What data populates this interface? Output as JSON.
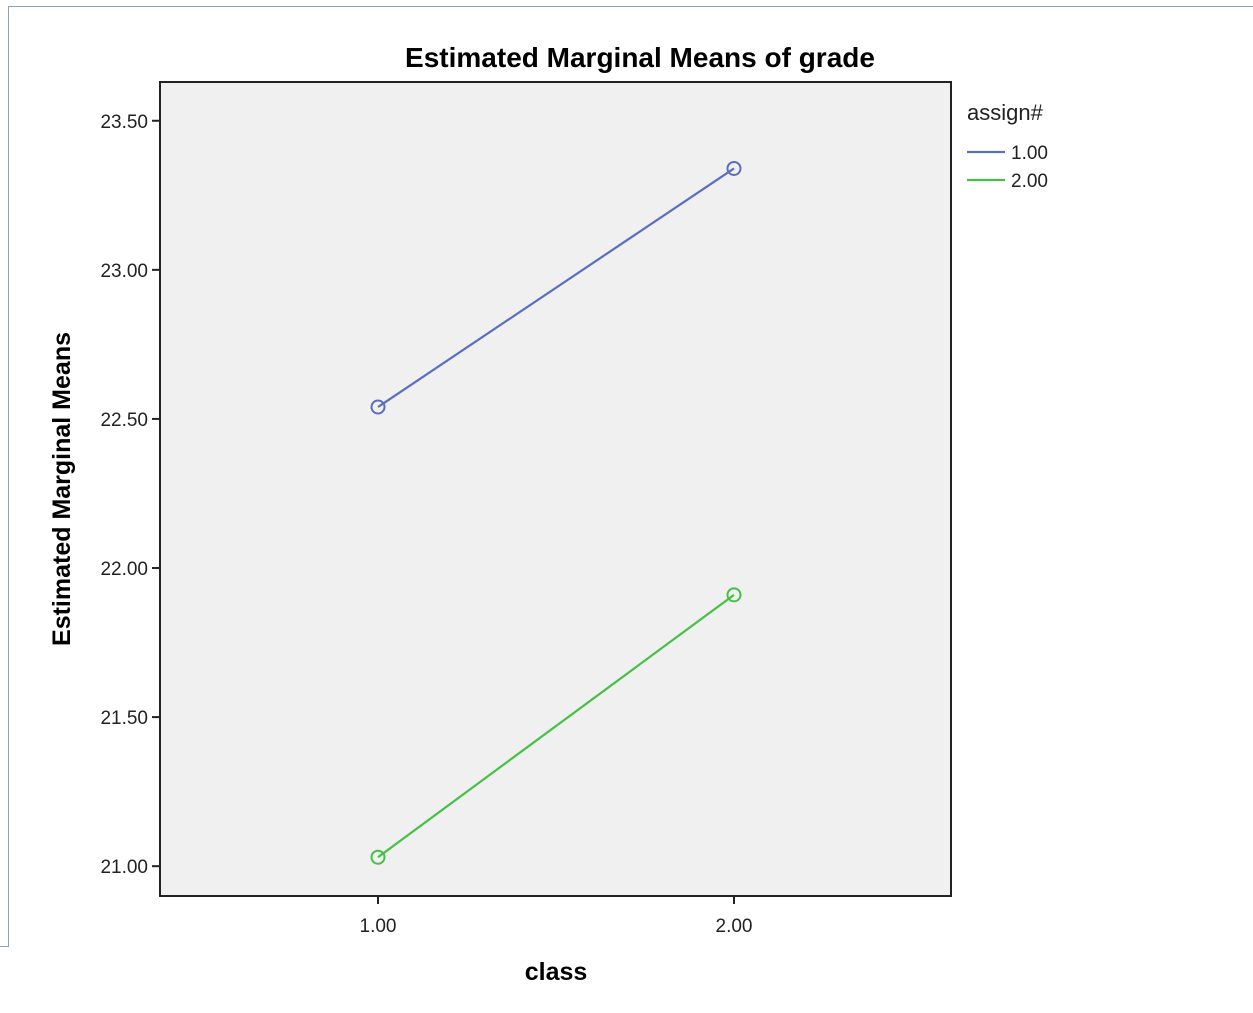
{
  "chart_data": {
    "type": "line",
    "title": "Estimated Marginal Means of grade",
    "xlabel": "class",
    "ylabel": "Estimated Marginal Means",
    "categories": [
      "1.00",
      "2.00"
    ],
    "ylim": [
      20.9,
      23.63
    ],
    "yticks": [
      "21.00",
      "21.50",
      "22.00",
      "22.50",
      "23.00",
      "23.50"
    ],
    "grid": false,
    "legend": {
      "title": "assign#",
      "position": "top-right, outside plot"
    },
    "series": [
      {
        "name": "1.00",
        "color": "#5a6ebf",
        "values": [
          22.54,
          23.34
        ]
      },
      {
        "name": "2.00",
        "color": "#45c045",
        "values": [
          21.03,
          21.91
        ]
      }
    ],
    "plot_background": "#f0f0f0",
    "marker": "open-circle"
  }
}
